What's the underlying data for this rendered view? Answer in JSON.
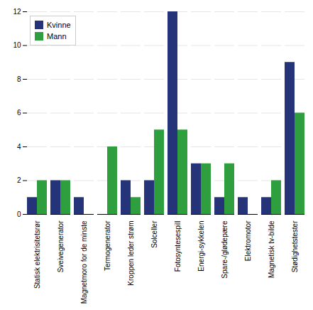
{
  "chart_data": {
    "type": "bar",
    "categories": [
      "Statisk elektrisitetsrør",
      "Sveivegenerator",
      "Magnetmoro for de minste",
      "Termogenerator",
      "Kroppen leder strøm",
      "Solceller",
      "Fotosyntesespill",
      "Energi-sykkelen",
      "Spare-/glødepære",
      "Elektromotor",
      "Magnetisk tv-bilde",
      "Stødighetstester"
    ],
    "series": [
      {
        "name": "Kvinne",
        "color": "#253479",
        "values": [
          1,
          2,
          1,
          0,
          2,
          2,
          12,
          3,
          1,
          1,
          1,
          9
        ]
      },
      {
        "name": "Mann",
        "color": "#2e9e3e",
        "values": [
          2,
          2,
          0,
          4,
          1,
          5,
          5,
          3,
          3,
          0,
          2,
          6
        ]
      }
    ],
    "ylim": [
      0,
      12
    ],
    "yticks": [
      0,
      2,
      4,
      6,
      8,
      10,
      12
    ],
    "grid": true,
    "legend": "upper left"
  }
}
